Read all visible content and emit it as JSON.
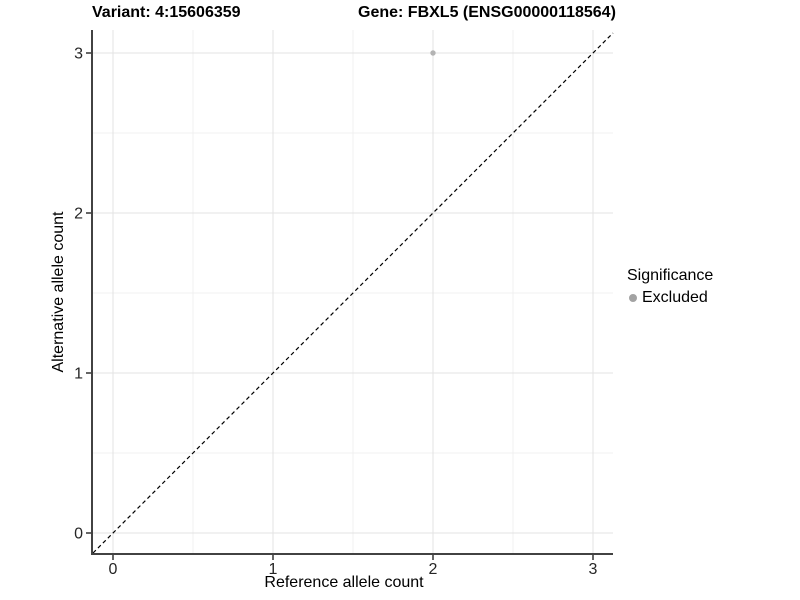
{
  "header": {
    "title_left": "Variant: 4:15606359",
    "title_right": "Gene: FBXL5 (ENSG00000118564)"
  },
  "chart_data": {
    "type": "scatter",
    "xlabel": "Reference allele count",
    "ylabel": "Alternative allele count",
    "xlim": [
      -0.125,
      3.125
    ],
    "ylim": [
      -0.125,
      3.125
    ],
    "x_ticks": [
      0,
      1,
      2,
      3
    ],
    "y_ticks": [
      0,
      1,
      2,
      3
    ],
    "x_minor_ticks": [
      0.5,
      1.5,
      2.5
    ],
    "y_minor_ticks": [
      0.5,
      1.5,
      2.5
    ],
    "grid": "major and minor gridlines on white background",
    "identity_line": {
      "style": "dashed",
      "x1": -0.125,
      "y1": -0.125,
      "x2": 3.125,
      "y2": 3.125
    },
    "points": [
      {
        "x": 2,
        "y": 3,
        "series": "Excluded"
      }
    ],
    "legend": {
      "title": "Significance",
      "position": "right",
      "items": [
        {
          "label": "Excluded",
          "color": "#a3a3a3"
        }
      ]
    },
    "colors": {
      "point": "#b3b3b3",
      "grid_major": "#e3e3e3",
      "grid_minor": "#f0f0f0",
      "axis_line": "#424242",
      "tick_mark": "#333333",
      "tick_label": "#262626",
      "identity_line": "#000000"
    }
  }
}
